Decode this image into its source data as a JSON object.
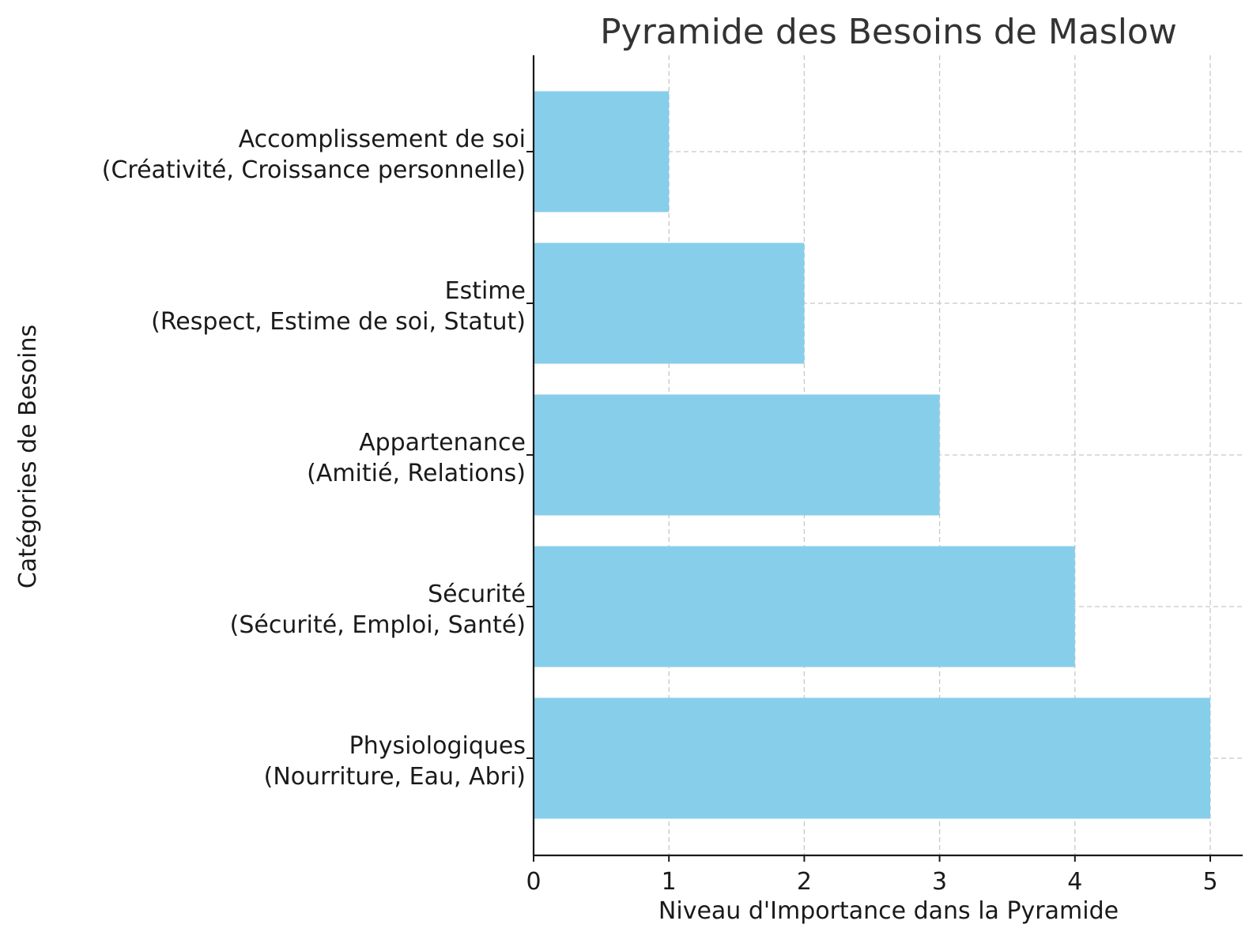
{
  "chart_data": {
    "type": "bar",
    "orientation": "horizontal",
    "title": "Pyramide des Besoins de Maslow",
    "xlabel": "Niveau d'Importance dans la Pyramide",
    "ylabel": "Catégories de Besoins",
    "xlim": [
      0,
      5.25
    ],
    "xticks": [
      "0",
      "1",
      "2",
      "3",
      "4",
      "5"
    ],
    "grid": true,
    "bar_color": "#87CEEB",
    "categories": [
      [
        "Physiologiques",
        "(Nourriture, Eau, Abri)"
      ],
      [
        "Sécurité",
        "(Sécurité, Emploi, Santé)"
      ],
      [
        "Appartenance",
        "(Amitié, Relations)"
      ],
      [
        "Estime",
        "(Respect, Estime de soi, Statut)"
      ],
      [
        "Accomplissement de soi",
        "(Créativité, Croissance personnelle)"
      ]
    ],
    "values": [
      5,
      4,
      3,
      2,
      1
    ]
  }
}
